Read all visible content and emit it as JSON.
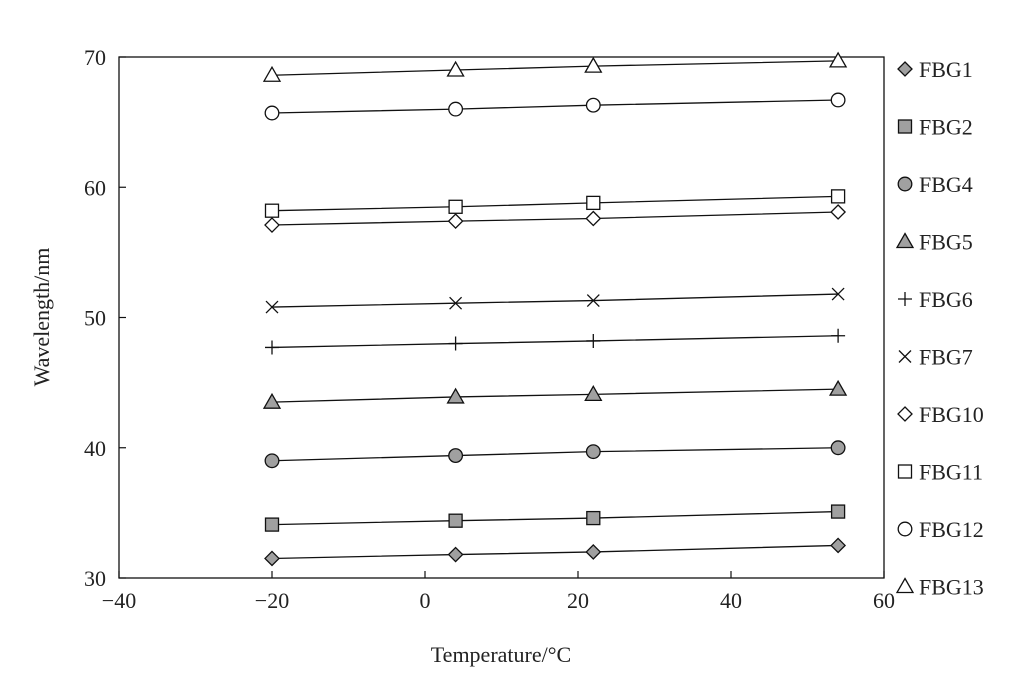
{
  "chart_data": {
    "type": "line",
    "title": "",
    "xlabel": "Temperature/°C",
    "ylabel": "Wavelength/nm",
    "xlim": [
      -40,
      60
    ],
    "ylim": [
      30,
      70
    ],
    "xticks": [
      "−40",
      "−20",
      "0",
      "20",
      "40",
      "60"
    ],
    "yticks": [
      "30",
      "40",
      "50",
      "60",
      "70"
    ],
    "grid": false,
    "legend_position": "right",
    "x": [
      -20,
      4,
      22,
      54
    ],
    "series": [
      {
        "name": "FBG1",
        "marker": "diamond",
        "filled": true,
        "values": [
          31.5,
          31.8,
          32.0,
          32.5
        ]
      },
      {
        "name": "FBG2",
        "marker": "square",
        "filled": true,
        "values": [
          34.1,
          34.4,
          34.6,
          35.1
        ]
      },
      {
        "name": "FBG4",
        "marker": "circle",
        "filled": true,
        "values": [
          39.0,
          39.4,
          39.7,
          40.0
        ]
      },
      {
        "name": "FBG5",
        "marker": "triangle",
        "filled": true,
        "values": [
          43.5,
          43.9,
          44.1,
          44.5
        ]
      },
      {
        "name": "FBG6",
        "marker": "plus",
        "filled": false,
        "values": [
          47.7,
          48.0,
          48.2,
          48.6
        ]
      },
      {
        "name": "FBG7",
        "marker": "cross",
        "filled": false,
        "values": [
          50.8,
          51.1,
          51.3,
          51.8
        ]
      },
      {
        "name": "FBG10",
        "marker": "diamond",
        "filled": false,
        "values": [
          57.1,
          57.4,
          57.6,
          58.1
        ]
      },
      {
        "name": "FBG11",
        "marker": "square",
        "filled": false,
        "values": [
          58.2,
          58.5,
          58.8,
          59.3
        ]
      },
      {
        "name": "FBG12",
        "marker": "circle",
        "filled": false,
        "values": [
          65.7,
          66.0,
          66.3,
          66.7
        ]
      },
      {
        "name": "FBG13",
        "marker": "triangle",
        "filled": false,
        "values": [
          68.6,
          69.0,
          69.3,
          69.7
        ]
      }
    ],
    "colors": {
      "line": "#111111",
      "fill": "#a0a0a0",
      "open": "#ffffff"
    }
  }
}
